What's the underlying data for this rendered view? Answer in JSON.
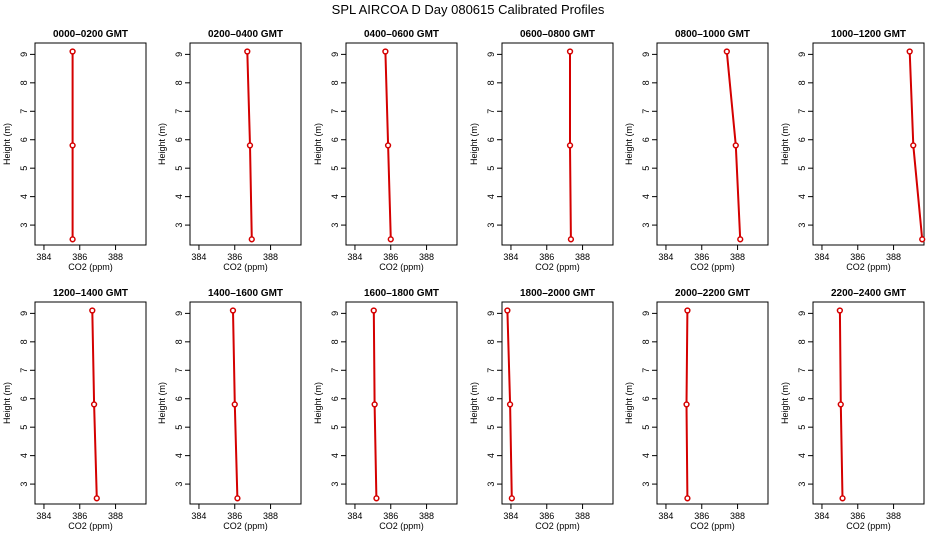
{
  "figure_title": "SPL AIRCOA D  Day 080615  Calibrated Profiles",
  "colors": {
    "series": "#d40000",
    "axis": "#000000"
  },
  "chart_data": [
    {
      "type": "line",
      "title": "0000–0200 GMT",
      "xlabel": "CO2 (ppm)",
      "ylabel": "Height (m)",
      "xlim": [
        383.5,
        389.7
      ],
      "ylim": [
        2.3,
        9.4
      ],
      "xticks": [
        384,
        386,
        388
      ],
      "yticks": [
        3,
        4,
        5,
        6,
        7,
        8,
        9
      ],
      "series": [
        {
          "points": [
            {
              "x": 385.6,
              "y": 9.1
            },
            {
              "x": 385.6,
              "y": 5.8
            },
            {
              "x": 385.6,
              "y": 2.5
            }
          ]
        }
      ]
    },
    {
      "type": "line",
      "title": "0200–0400 GMT",
      "xlabel": "CO2 (ppm)",
      "ylabel": "Height (m)",
      "xlim": [
        383.5,
        389.7
      ],
      "ylim": [
        2.3,
        9.4
      ],
      "xticks": [
        384,
        386,
        388
      ],
      "yticks": [
        3,
        4,
        5,
        6,
        7,
        8,
        9
      ],
      "series": [
        {
          "points": [
            {
              "x": 386.7,
              "y": 9.1
            },
            {
              "x": 386.85,
              "y": 5.8
            },
            {
              "x": 386.95,
              "y": 2.5
            }
          ]
        }
      ]
    },
    {
      "type": "line",
      "title": "0400–0600 GMT",
      "xlabel": "CO2 (ppm)",
      "ylabel": "Height (m)",
      "xlim": [
        383.5,
        389.7
      ],
      "ylim": [
        2.3,
        9.4
      ],
      "xticks": [
        384,
        386,
        388
      ],
      "yticks": [
        3,
        4,
        5,
        6,
        7,
        8,
        9
      ],
      "series": [
        {
          "points": [
            {
              "x": 385.7,
              "y": 9.1
            },
            {
              "x": 385.85,
              "y": 5.8
            },
            {
              "x": 386.0,
              "y": 2.5
            }
          ]
        }
      ]
    },
    {
      "type": "line",
      "title": "0600–0800 GMT",
      "xlabel": "CO2 (ppm)",
      "ylabel": "Height (m)",
      "xlim": [
        383.5,
        389.7
      ],
      "ylim": [
        2.3,
        9.4
      ],
      "xticks": [
        384,
        386,
        388
      ],
      "yticks": [
        3,
        4,
        5,
        6,
        7,
        8,
        9
      ],
      "series": [
        {
          "points": [
            {
              "x": 387.3,
              "y": 9.1
            },
            {
              "x": 387.3,
              "y": 5.8
            },
            {
              "x": 387.35,
              "y": 2.5
            }
          ]
        }
      ]
    },
    {
      "type": "line",
      "title": "0800–1000 GMT",
      "xlabel": "CO2 (ppm)",
      "ylabel": "Height (m)",
      "xlim": [
        383.5,
        389.7
      ],
      "ylim": [
        2.3,
        9.4
      ],
      "xticks": [
        384,
        386,
        388
      ],
      "yticks": [
        3,
        4,
        5,
        6,
        7,
        8,
        9
      ],
      "series": [
        {
          "points": [
            {
              "x": 387.4,
              "y": 9.1
            },
            {
              "x": 387.9,
              "y": 5.8
            },
            {
              "x": 388.15,
              "y": 2.5
            }
          ]
        }
      ]
    },
    {
      "type": "line",
      "title": "1000–1200 GMT",
      "xlabel": "CO2 (ppm)",
      "ylabel": "Height (m)",
      "xlim": [
        383.5,
        389.7
      ],
      "ylim": [
        2.3,
        9.4
      ],
      "xticks": [
        384,
        386,
        388
      ],
      "yticks": [
        3,
        4,
        5,
        6,
        7,
        8,
        9
      ],
      "series": [
        {
          "points": [
            {
              "x": 388.9,
              "y": 9.1
            },
            {
              "x": 389.1,
              "y": 5.8
            },
            {
              "x": 389.6,
              "y": 2.5
            }
          ]
        }
      ]
    },
    {
      "type": "line",
      "title": "1200–1400 GMT",
      "xlabel": "CO2 (ppm)",
      "ylabel": "Height (m)",
      "xlim": [
        383.5,
        389.7
      ],
      "ylim": [
        2.3,
        9.4
      ],
      "xticks": [
        384,
        386,
        388
      ],
      "yticks": [
        3,
        4,
        5,
        6,
        7,
        8,
        9
      ],
      "series": [
        {
          "points": [
            {
              "x": 386.7,
              "y": 9.1
            },
            {
              "x": 386.8,
              "y": 5.8
            },
            {
              "x": 386.95,
              "y": 2.5
            }
          ]
        }
      ]
    },
    {
      "type": "line",
      "title": "1400–1600 GMT",
      "xlabel": "CO2 (ppm)",
      "ylabel": "Height (m)",
      "xlim": [
        383.5,
        389.7
      ],
      "ylim": [
        2.3,
        9.4
      ],
      "xticks": [
        384,
        386,
        388
      ],
      "yticks": [
        3,
        4,
        5,
        6,
        7,
        8,
        9
      ],
      "series": [
        {
          "points": [
            {
              "x": 385.9,
              "y": 9.1
            },
            {
              "x": 386.0,
              "y": 5.8
            },
            {
              "x": 386.15,
              "y": 2.5
            }
          ]
        }
      ]
    },
    {
      "type": "line",
      "title": "1600–1800 GMT",
      "xlabel": "CO2 (ppm)",
      "ylabel": "Height (m)",
      "xlim": [
        383.5,
        389.7
      ],
      "ylim": [
        2.3,
        9.4
      ],
      "xticks": [
        384,
        386,
        388
      ],
      "yticks": [
        3,
        4,
        5,
        6,
        7,
        8,
        9
      ],
      "series": [
        {
          "points": [
            {
              "x": 385.05,
              "y": 9.1
            },
            {
              "x": 385.1,
              "y": 5.8
            },
            {
              "x": 385.2,
              "y": 2.5
            }
          ]
        }
      ]
    },
    {
      "type": "line",
      "title": "1800–2000 GMT",
      "xlabel": "CO2 (ppm)",
      "ylabel": "Height (m)",
      "xlim": [
        383.5,
        389.7
      ],
      "ylim": [
        2.3,
        9.4
      ],
      "xticks": [
        384,
        386,
        388
      ],
      "yticks": [
        3,
        4,
        5,
        6,
        7,
        8,
        9
      ],
      "series": [
        {
          "points": [
            {
              "x": 383.8,
              "y": 9.1
            },
            {
              "x": 383.95,
              "y": 5.8
            },
            {
              "x": 384.05,
              "y": 2.5
            }
          ]
        }
      ]
    },
    {
      "type": "line",
      "title": "2000–2200 GMT",
      "xlabel": "CO2 (ppm)",
      "ylabel": "Height (m)",
      "xlim": [
        383.5,
        389.7
      ],
      "ylim": [
        2.3,
        9.4
      ],
      "xticks": [
        384,
        386,
        388
      ],
      "yticks": [
        3,
        4,
        5,
        6,
        7,
        8,
        9
      ],
      "series": [
        {
          "points": [
            {
              "x": 385.2,
              "y": 9.1
            },
            {
              "x": 385.15,
              "y": 5.8
            },
            {
              "x": 385.2,
              "y": 2.5
            }
          ]
        }
      ]
    },
    {
      "type": "line",
      "title": "2200–2400 GMT",
      "xlabel": "CO2 (ppm)",
      "ylabel": "Height (m)",
      "xlim": [
        383.5,
        389.7
      ],
      "ylim": [
        2.3,
        9.4
      ],
      "xticks": [
        384,
        386,
        388
      ],
      "yticks": [
        3,
        4,
        5,
        6,
        7,
        8,
        9
      ],
      "series": [
        {
          "points": [
            {
              "x": 385.0,
              "y": 9.1
            },
            {
              "x": 385.05,
              "y": 5.8
            },
            {
              "x": 385.15,
              "y": 2.5
            }
          ]
        }
      ]
    }
  ]
}
